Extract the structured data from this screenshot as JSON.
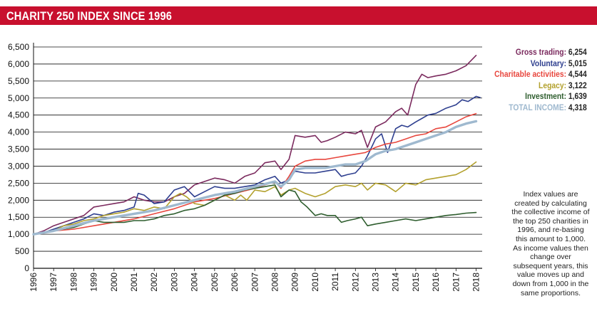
{
  "header": {
    "title": "CHARITY 250 INDEX SINCE 1996"
  },
  "legend": [
    {
      "label": "Gross trading:",
      "value": "6,254",
      "color": "#7b2a5e"
    },
    {
      "label": "Voluntary:",
      "value": "5,015",
      "color": "#2e3f8f"
    },
    {
      "label": "Charitable activities:",
      "value": "4,544",
      "color": "#e8473e"
    },
    {
      "label": "Legacy:",
      "value": "3,122",
      "color": "#b3a12e"
    },
    {
      "label": "Investment:",
      "value": "1,639",
      "color": "#2f5e2f"
    },
    {
      "label": "TOTAL INCOME:",
      "value": "4,318",
      "color": "#9fb9cf"
    }
  ],
  "note": "Index values are created by calculating the collective income of the top 250 charities in 1996, and re-basing this amount to 1,000. As income values then change over subsequent years, this value moves up and down from 1,000 in the same proportions.",
  "chart_data": {
    "type": "line",
    "title": "CHARITY 250 INDEX SINCE 1996",
    "xlabel": "",
    "ylabel": "",
    "x_ticks": [
      "1996",
      "1997",
      "1998",
      "1999",
      "2000",
      "2001",
      "2002",
      "2003",
      "2004",
      "2005",
      "2006",
      "2007",
      "2008",
      "2009",
      "2010",
      "2011",
      "2012",
      "2013",
      "2014",
      "2015",
      "2016",
      "2017",
      "2018"
    ],
    "y_ticks": [
      0,
      500,
      1000,
      1500,
      2000,
      2500,
      3000,
      3500,
      4000,
      4500,
      5000,
      5500,
      6000,
      6500
    ],
    "ylim": [
      0,
      6500
    ],
    "xlim": [
      1996,
      2018.3
    ],
    "grid": "horizontal",
    "legend_position": "right",
    "series": [
      {
        "name": "Gross trading",
        "color": "#7b2a5e",
        "width": 1.6,
        "points": [
          [
            1996,
            1000
          ],
          [
            1996.5,
            1100
          ],
          [
            1997,
            1250
          ],
          [
            1997.5,
            1350
          ],
          [
            1998,
            1450
          ],
          [
            1998.5,
            1550
          ],
          [
            1999,
            1800
          ],
          [
            1999.5,
            1850
          ],
          [
            2000,
            1900
          ],
          [
            2000.5,
            1950
          ],
          [
            2001,
            2100
          ],
          [
            2001.5,
            2000
          ],
          [
            2002,
            1950
          ],
          [
            2002.5,
            1950
          ],
          [
            2003,
            2100
          ],
          [
            2003.5,
            2200
          ],
          [
            2004,
            2450
          ],
          [
            2004.5,
            2550
          ],
          [
            2005,
            2650
          ],
          [
            2005.5,
            2600
          ],
          [
            2006,
            2500
          ],
          [
            2006.5,
            2700
          ],
          [
            2007,
            2800
          ],
          [
            2007.5,
            3100
          ],
          [
            2008,
            3150
          ],
          [
            2008.3,
            2900
          ],
          [
            2008.7,
            3200
          ],
          [
            2009,
            3900
          ],
          [
            2009.5,
            3850
          ],
          [
            2010,
            3900
          ],
          [
            2010.3,
            3700
          ],
          [
            2010.6,
            3750
          ],
          [
            2011,
            3850
          ],
          [
            2011.5,
            4000
          ],
          [
            2012,
            3950
          ],
          [
            2012.3,
            4050
          ],
          [
            2012.6,
            3550
          ],
          [
            2013,
            4150
          ],
          [
            2013.5,
            4300
          ],
          [
            2014,
            4600
          ],
          [
            2014.3,
            4700
          ],
          [
            2014.6,
            4500
          ],
          [
            2015,
            5400
          ],
          [
            2015.3,
            5700
          ],
          [
            2015.6,
            5600
          ],
          [
            2016,
            5650
          ],
          [
            2016.5,
            5700
          ],
          [
            2017,
            5800
          ],
          [
            2017.5,
            5950
          ],
          [
            2018,
            6254
          ]
        ]
      },
      {
        "name": "Voluntary",
        "color": "#2e3f8f",
        "width": 1.6,
        "points": [
          [
            1996,
            1000
          ],
          [
            1996.5,
            1050
          ],
          [
            1997,
            1150
          ],
          [
            1997.5,
            1250
          ],
          [
            1998,
            1350
          ],
          [
            1998.5,
            1450
          ],
          [
            1999,
            1600
          ],
          [
            1999.5,
            1550
          ],
          [
            2000,
            1650
          ],
          [
            2000.5,
            1700
          ],
          [
            2001,
            1800
          ],
          [
            2001.2,
            2200
          ],
          [
            2001.5,
            2150
          ],
          [
            2002,
            1900
          ],
          [
            2002.5,
            1950
          ],
          [
            2003,
            2300
          ],
          [
            2003.5,
            2400
          ],
          [
            2004,
            2100
          ],
          [
            2004.5,
            2250
          ],
          [
            2005,
            2400
          ],
          [
            2005.5,
            2350
          ],
          [
            2006,
            2350
          ],
          [
            2006.5,
            2400
          ],
          [
            2007,
            2450
          ],
          [
            2007.5,
            2600
          ],
          [
            2008,
            2700
          ],
          [
            2008.3,
            2500
          ],
          [
            2008.7,
            2600
          ],
          [
            2009,
            2850
          ],
          [
            2009.5,
            2800
          ],
          [
            2010,
            2800
          ],
          [
            2010.5,
            2850
          ],
          [
            2011,
            2900
          ],
          [
            2011.3,
            2700
          ],
          [
            2011.6,
            2750
          ],
          [
            2012,
            2800
          ],
          [
            2012.3,
            3000
          ],
          [
            2012.6,
            3300
          ],
          [
            2013,
            3800
          ],
          [
            2013.3,
            3950
          ],
          [
            2013.6,
            3400
          ],
          [
            2014,
            4100
          ],
          [
            2014.3,
            4200
          ],
          [
            2014.6,
            4150
          ],
          [
            2015,
            4300
          ],
          [
            2015.3,
            4400
          ],
          [
            2015.6,
            4500
          ],
          [
            2016,
            4550
          ],
          [
            2016.5,
            4700
          ],
          [
            2017,
            4800
          ],
          [
            2017.3,
            4950
          ],
          [
            2017.6,
            4900
          ],
          [
            2018,
            5050
          ],
          [
            2018.2,
            5015
          ]
        ]
      },
      {
        "name": "Charitable activities",
        "color": "#e8473e",
        "width": 1.6,
        "points": [
          [
            1996,
            1000
          ],
          [
            1997,
            1100
          ],
          [
            1998,
            1150
          ],
          [
            1999,
            1250
          ],
          [
            2000,
            1350
          ],
          [
            2001,
            1450
          ],
          [
            2002,
            1600
          ],
          [
            2003,
            1750
          ],
          [
            2004,
            1950
          ],
          [
            2005,
            2050
          ],
          [
            2006,
            2200
          ],
          [
            2007,
            2350
          ],
          [
            2008,
            2550
          ],
          [
            2008.3,
            2350
          ],
          [
            2008.7,
            2700
          ],
          [
            2009,
            3000
          ],
          [
            2009.5,
            3150
          ],
          [
            2010,
            3200
          ],
          [
            2010.5,
            3200
          ],
          [
            2011,
            3250
          ],
          [
            2011.5,
            3300
          ],
          [
            2012,
            3350
          ],
          [
            2012.5,
            3400
          ],
          [
            2013,
            3550
          ],
          [
            2013.5,
            3650
          ],
          [
            2014,
            3700
          ],
          [
            2014.5,
            3800
          ],
          [
            2015,
            3900
          ],
          [
            2015.5,
            3950
          ],
          [
            2016,
            4100
          ],
          [
            2016.5,
            4150
          ],
          [
            2017,
            4300
          ],
          [
            2017.5,
            4450
          ],
          [
            2018,
            4544
          ]
        ]
      },
      {
        "name": "Legacy",
        "color": "#b3a12e",
        "width": 1.6,
        "points": [
          [
            1996,
            1000
          ],
          [
            1996.5,
            1050
          ],
          [
            1997,
            1100
          ],
          [
            1997.5,
            1250
          ],
          [
            1998,
            1300
          ],
          [
            1998.5,
            1400
          ],
          [
            1999,
            1450
          ],
          [
            1999.5,
            1550
          ],
          [
            2000,
            1600
          ],
          [
            2000.5,
            1650
          ],
          [
            2001,
            1750
          ],
          [
            2001.5,
            1700
          ],
          [
            2002,
            1800
          ],
          [
            2002.5,
            1750
          ],
          [
            2003,
            2100
          ],
          [
            2003.3,
            2200
          ],
          [
            2003.6,
            2100
          ],
          [
            2004,
            1900
          ],
          [
            2004.5,
            1850
          ],
          [
            2005,
            2000
          ],
          [
            2005.5,
            2150
          ],
          [
            2006,
            2000
          ],
          [
            2006.3,
            2150
          ],
          [
            2006.6,
            2000
          ],
          [
            2007,
            2300
          ],
          [
            2007.5,
            2250
          ],
          [
            2008,
            2400
          ],
          [
            2008.3,
            2150
          ],
          [
            2008.7,
            2300
          ],
          [
            2009,
            2350
          ],
          [
            2009.5,
            2200
          ],
          [
            2010,
            2100
          ],
          [
            2010.5,
            2200
          ],
          [
            2011,
            2400
          ],
          [
            2011.5,
            2450
          ],
          [
            2012,
            2400
          ],
          [
            2012.3,
            2500
          ],
          [
            2012.6,
            2300
          ],
          [
            2013,
            2500
          ],
          [
            2013.5,
            2450
          ],
          [
            2014,
            2250
          ],
          [
            2014.5,
            2500
          ],
          [
            2015,
            2450
          ],
          [
            2015.5,
            2600
          ],
          [
            2016,
            2650
          ],
          [
            2016.5,
            2700
          ],
          [
            2017,
            2750
          ],
          [
            2017.5,
            2900
          ],
          [
            2018,
            3122
          ]
        ]
      },
      {
        "name": "Investment",
        "color": "#2f5e2f",
        "width": 1.6,
        "points": [
          [
            1996,
            1000
          ],
          [
            1996.5,
            1050
          ],
          [
            1997,
            1100
          ],
          [
            1997.5,
            1150
          ],
          [
            1998,
            1200
          ],
          [
            1998.5,
            1300
          ],
          [
            1999,
            1400
          ],
          [
            1999.5,
            1350
          ],
          [
            2000,
            1350
          ],
          [
            2000.5,
            1350
          ],
          [
            2001,
            1400
          ],
          [
            2001.5,
            1400
          ],
          [
            2002,
            1450
          ],
          [
            2002.5,
            1550
          ],
          [
            2003,
            1600
          ],
          [
            2003.5,
            1700
          ],
          [
            2004,
            1750
          ],
          [
            2004.5,
            1850
          ],
          [
            2005,
            2000
          ],
          [
            2005.5,
            2150
          ],
          [
            2006,
            2200
          ],
          [
            2006.5,
            2300
          ],
          [
            2007,
            2350
          ],
          [
            2007.5,
            2400
          ],
          [
            2008,
            2450
          ],
          [
            2008.3,
            2100
          ],
          [
            2008.7,
            2300
          ],
          [
            2009,
            2250
          ],
          [
            2009.3,
            1950
          ],
          [
            2009.6,
            1800
          ],
          [
            2010,
            1550
          ],
          [
            2010.3,
            1600
          ],
          [
            2010.6,
            1550
          ],
          [
            2011,
            1550
          ],
          [
            2011.3,
            1350
          ],
          [
            2011.6,
            1400
          ],
          [
            2012,
            1450
          ],
          [
            2012.3,
            1500
          ],
          [
            2012.6,
            1250
          ],
          [
            2013,
            1300
          ],
          [
            2013.5,
            1350
          ],
          [
            2014,
            1400
          ],
          [
            2014.5,
            1450
          ],
          [
            2015,
            1400
          ],
          [
            2015.5,
            1450
          ],
          [
            2016,
            1500
          ],
          [
            2016.5,
            1550
          ],
          [
            2017,
            1580
          ],
          [
            2017.5,
            1620
          ],
          [
            2018,
            1639
          ]
        ]
      },
      {
        "name": "TOTAL INCOME",
        "color": "#9fb9cf",
        "width": 3.4,
        "points": [
          [
            1996,
            1000
          ],
          [
            1997,
            1100
          ],
          [
            1998,
            1250
          ],
          [
            1999,
            1400
          ],
          [
            2000,
            1500
          ],
          [
            2001,
            1600
          ],
          [
            2002,
            1700
          ],
          [
            2003,
            1850
          ],
          [
            2004,
            2000
          ],
          [
            2005,
            2150
          ],
          [
            2006,
            2250
          ],
          [
            2007,
            2400
          ],
          [
            2008,
            2550
          ],
          [
            2008.3,
            2400
          ],
          [
            2008.7,
            2600
          ],
          [
            2009,
            2900
          ],
          [
            2009.5,
            2950
          ],
          [
            2010,
            2950
          ],
          [
            2010.5,
            2950
          ],
          [
            2011,
            3000
          ],
          [
            2011.5,
            3050
          ],
          [
            2012,
            3050
          ],
          [
            2012.5,
            3150
          ],
          [
            2013,
            3350
          ],
          [
            2013.5,
            3450
          ],
          [
            2014,
            3500
          ],
          [
            2014.5,
            3600
          ],
          [
            2015,
            3700
          ],
          [
            2015.5,
            3800
          ],
          [
            2016,
            3900
          ],
          [
            2016.5,
            4000
          ],
          [
            2017,
            4150
          ],
          [
            2017.5,
            4250
          ],
          [
            2018,
            4318
          ]
        ]
      }
    ]
  }
}
